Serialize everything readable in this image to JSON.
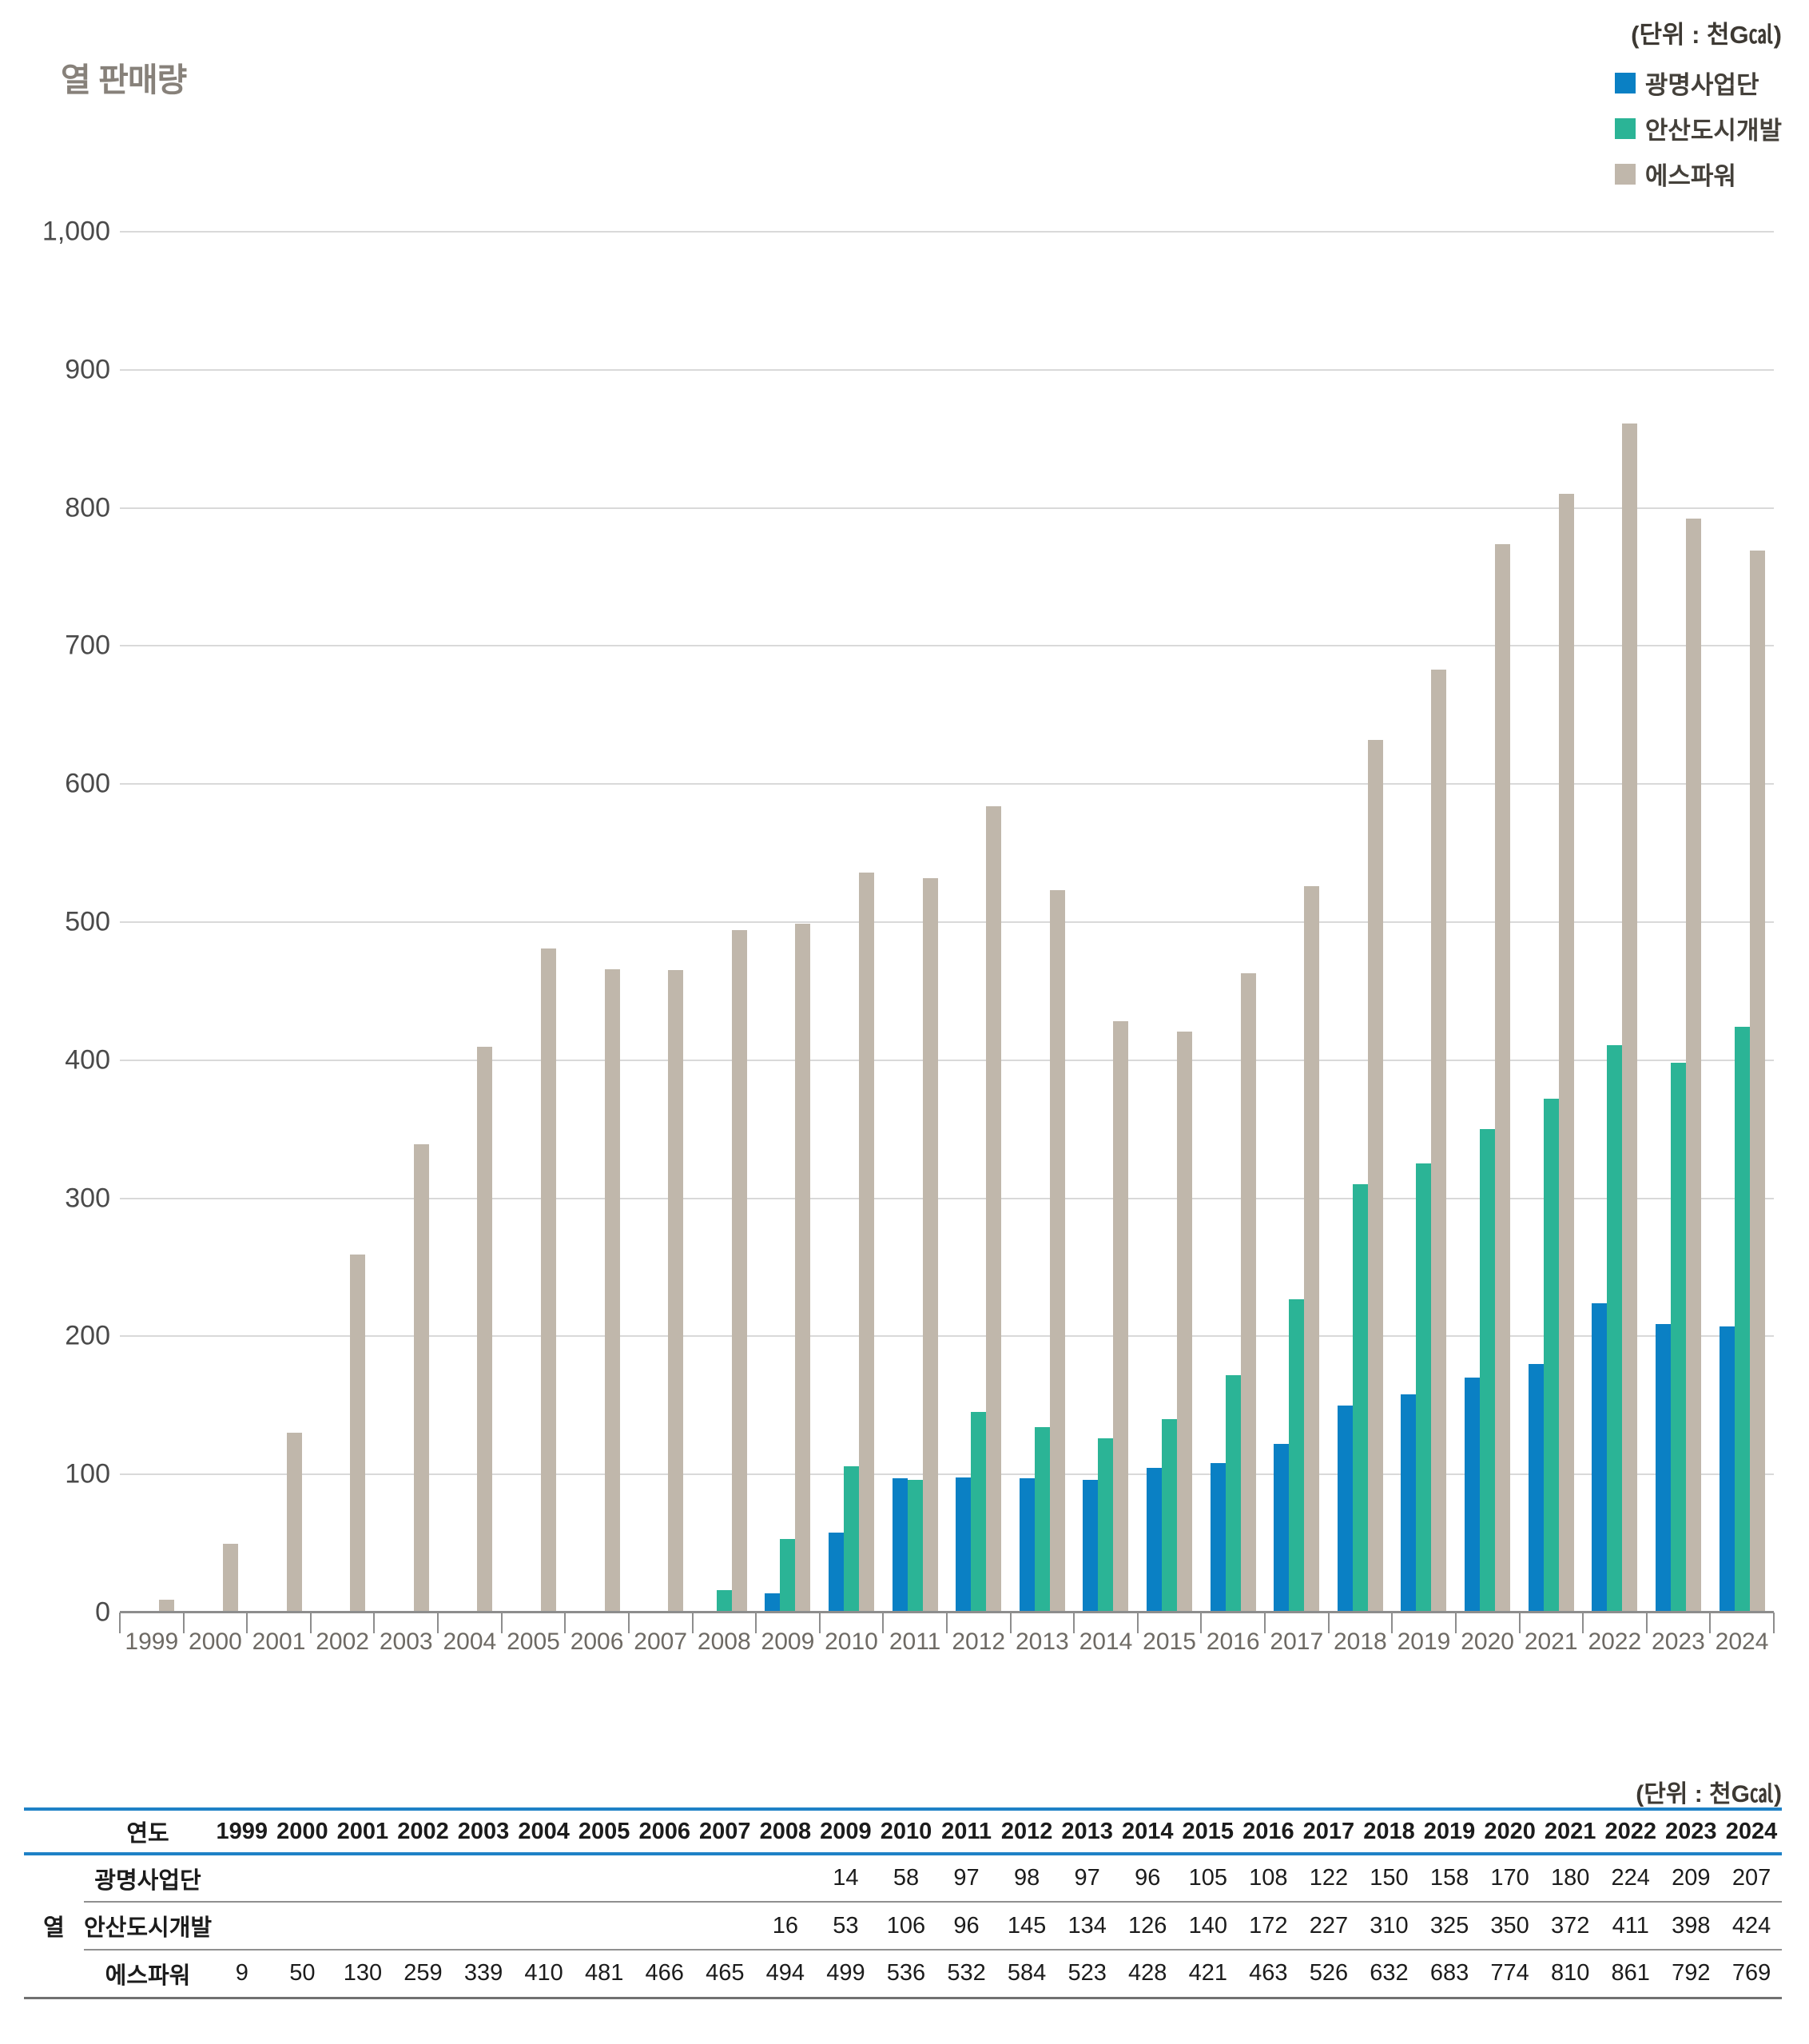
{
  "header": {
    "title": "열 판매량",
    "unit_label": "(단위 : 천G㎈)"
  },
  "legend": [
    {
      "key": "gwangmyeong",
      "label": "광명사업단",
      "color": "#0a80c4"
    },
    {
      "key": "ansan",
      "label": "안산도시개발",
      "color": "#2bb496"
    },
    {
      "key": "spower",
      "label": "에스파워",
      "color": "#c0b7ab"
    }
  ],
  "chart_data": {
    "type": "bar",
    "title": "열 판매량",
    "unit": "천Gcal",
    "categories": [
      "1999",
      "2000",
      "2001",
      "2002",
      "2003",
      "2004",
      "2005",
      "2006",
      "2007",
      "2008",
      "2009",
      "2010",
      "2011",
      "2012",
      "2013",
      "2014",
      "2015",
      "2016",
      "2017",
      "2018",
      "2019",
      "2020",
      "2021",
      "2022",
      "2023",
      "2024"
    ],
    "series": [
      {
        "key": "gwangmyeong",
        "name": "광명사업단",
        "color": "#0a80c4",
        "values": [
          null,
          null,
          null,
          null,
          null,
          null,
          null,
          null,
          null,
          null,
          14,
          58,
          97,
          98,
          97,
          96,
          105,
          108,
          122,
          150,
          158,
          170,
          180,
          224,
          209,
          207
        ]
      },
      {
        "key": "ansan",
        "name": "안산도시개발",
        "color": "#2bb496",
        "values": [
          null,
          null,
          null,
          null,
          null,
          null,
          null,
          null,
          null,
          16,
          53,
          106,
          96,
          145,
          134,
          126,
          140,
          172,
          227,
          310,
          325,
          350,
          372,
          411,
          398,
          424
        ]
      },
      {
        "key": "spower",
        "name": "에스파워",
        "color": "#c0b7ab",
        "values": [
          9,
          50,
          130,
          259,
          339,
          410,
          481,
          466,
          465,
          494,
          499,
          536,
          532,
          584,
          523,
          428,
          421,
          463,
          526,
          632,
          683,
          774,
          810,
          861,
          792,
          769
        ]
      }
    ],
    "ylim": [
      0,
      1000
    ],
    "ytick_step": 100,
    "ytick_labels": [
      "0",
      "100",
      "200",
      "300",
      "400",
      "500",
      "600",
      "700",
      "800",
      "900",
      "1,000"
    ],
    "grid": true,
    "legend_position": "top-right"
  },
  "table": {
    "unit_label": "(단위 : 천G㎈)",
    "year_header": "연도",
    "group_label": "열",
    "years": [
      "1999",
      "2000",
      "2001",
      "2002",
      "2003",
      "2004",
      "2005",
      "2006",
      "2007",
      "2008",
      "2009",
      "2010",
      "2011",
      "2012",
      "2013",
      "2014",
      "2015",
      "2016",
      "2017",
      "2018",
      "2019",
      "2020",
      "2021",
      "2022",
      "2023",
      "2024"
    ],
    "rows": [
      {
        "key": "gwangmyeong",
        "label": "광명사업단",
        "values": [
          "",
          "",
          "",
          "",
          "",
          "",
          "",
          "",
          "",
          "",
          "14",
          "58",
          "97",
          "98",
          "97",
          "96",
          "105",
          "108",
          "122",
          "150",
          "158",
          "170",
          "180",
          "224",
          "209",
          "207"
        ]
      },
      {
        "key": "ansan",
        "label": "안산도시개발",
        "values": [
          "",
          "",
          "",
          "",
          "",
          "",
          "",
          "",
          "",
          "16",
          "53",
          "106",
          "96",
          "145",
          "134",
          "126",
          "140",
          "172",
          "227",
          "310",
          "325",
          "350",
          "372",
          "411",
          "398",
          "424"
        ]
      },
      {
        "key": "spower",
        "label": "에스파워",
        "values": [
          "9",
          "50",
          "130",
          "259",
          "339",
          "410",
          "481",
          "466",
          "465",
          "494",
          "499",
          "536",
          "532",
          "584",
          "523",
          "428",
          "421",
          "463",
          "526",
          "632",
          "683",
          "774",
          "810",
          "861",
          "792",
          "769"
        ]
      }
    ]
  }
}
